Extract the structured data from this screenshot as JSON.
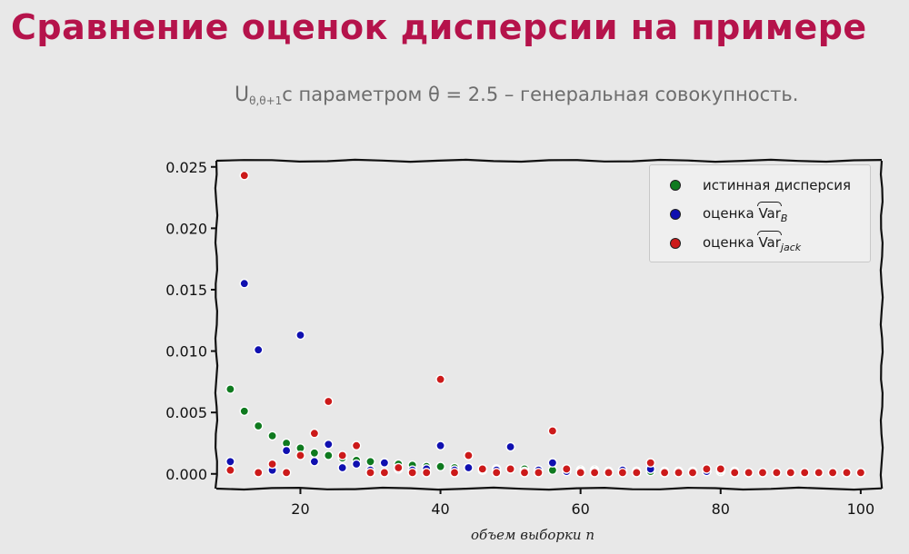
{
  "slide": {
    "title": "Сравнение оценок дисперсии на примере",
    "subtitle_symbol": "U",
    "subtitle_subscript": "θ,θ+1",
    "subtitle_text": "с параметром θ = 2.5 – генеральная совокупность."
  },
  "chart_data": {
    "type": "scatter",
    "xlabel": "объем выборки n",
    "ylabel": "",
    "xlim": [
      8,
      103
    ],
    "ylim": [
      -0.0012,
      0.0255
    ],
    "xticks": [
      20,
      40,
      60,
      80,
      100
    ],
    "yticks": [
      0.0,
      0.005,
      0.01,
      0.015,
      0.02,
      0.025
    ],
    "ytick_labels": [
      "0.000",
      "0.005",
      "0.010",
      "0.015",
      "0.020",
      "0.025"
    ],
    "grid": false,
    "legend_position": "top-right",
    "series": [
      {
        "name": "истинная дисперсия",
        "label_base": "истинная дисперсия",
        "label_hat": "",
        "label_sub": "",
        "color": "#0f7a1f",
        "x": [
          10,
          12,
          14,
          16,
          18,
          20,
          22,
          24,
          26,
          28,
          30,
          32,
          34,
          36,
          38,
          40,
          42,
          44,
          46,
          48,
          50,
          52,
          54,
          56,
          58,
          60,
          62,
          64,
          66,
          68,
          70,
          72,
          74,
          76,
          78,
          80,
          82,
          84,
          86,
          88,
          90,
          92,
          94,
          96,
          98,
          100
        ],
        "y": [
          0.0069,
          0.0051,
          0.0039,
          0.0031,
          0.0025,
          0.0021,
          0.0017,
          0.0015,
          0.0013,
          0.0011,
          0.001,
          0.0009,
          0.0008,
          0.0007,
          0.0006,
          0.0006,
          0.0005,
          0.0005,
          0.0004,
          0.0004,
          0.0004,
          0.0004,
          0.0003,
          0.0003,
          0.0003,
          0.0003,
          0.0003,
          0.0002,
          0.0002,
          0.0002,
          0.0002,
          0.0002,
          0.0002,
          0.0002,
          0.0002,
          0.0002,
          0.0002,
          0.0001,
          0.0001,
          0.0001,
          0.0001,
          0.0001,
          0.0001,
          0.0001,
          0.0001,
          0.0001
        ]
      },
      {
        "name": "оценка Var_B",
        "label_base": "оценка ",
        "label_hat": "Var",
        "label_sub": "B",
        "color": "#1010b0",
        "x": [
          10,
          12,
          14,
          16,
          18,
          20,
          22,
          24,
          26,
          28,
          30,
          32,
          34,
          36,
          38,
          40,
          42,
          44,
          46,
          48,
          50,
          52,
          54,
          56,
          58,
          60,
          62,
          64,
          66,
          68,
          70,
          72,
          74,
          76,
          78,
          80,
          82,
          84,
          86,
          88,
          90,
          92,
          94,
          96,
          98,
          100
        ],
        "y": [
          0.001,
          0.0155,
          0.0101,
          0.0003,
          0.0019,
          0.0113,
          0.001,
          0.0024,
          0.0005,
          0.0008,
          0.0003,
          0.0009,
          0.0004,
          0.0003,
          0.0004,
          0.0023,
          0.0003,
          0.0005,
          0.0003,
          0.0003,
          0.0022,
          0.0002,
          0.0003,
          0.0009,
          0.0002,
          0.0002,
          0.0002,
          0.0002,
          0.0003,
          0.0002,
          0.0004,
          0.0001,
          0.0002,
          0.0001,
          0.0002,
          0.0003,
          0.0001,
          0.0001,
          0.0001,
          0.0001,
          0.0001,
          0.0001,
          0.0001,
          0.0001,
          0.0001,
          0.0001
        ]
      },
      {
        "name": "оценка Var_jack",
        "label_base": "оценка ",
        "label_hat": "Var",
        "label_sub": "jack",
        "color": "#cc1a1a",
        "x": [
          10,
          12,
          14,
          16,
          18,
          20,
          22,
          24,
          26,
          28,
          30,
          32,
          34,
          36,
          38,
          40,
          42,
          44,
          46,
          48,
          50,
          52,
          54,
          56,
          58,
          60,
          62,
          64,
          66,
          68,
          70,
          72,
          74,
          76,
          78,
          80,
          82,
          84,
          86,
          88,
          90,
          92,
          94,
          96,
          98,
          100
        ],
        "y": [
          0.0003,
          0.0243,
          0.0001,
          0.0008,
          0.0001,
          0.0015,
          0.0033,
          0.0059,
          0.0015,
          0.0023,
          0.0001,
          0.0001,
          0.0005,
          0.0001,
          0.0001,
          0.0077,
          0.0001,
          0.0015,
          0.0004,
          0.0001,
          0.0004,
          0.0001,
          0.0001,
          0.0035,
          0.0004,
          0.0001,
          0.0001,
          0.0001,
          0.0001,
          0.0001,
          0.0009,
          0.0001,
          0.0001,
          0.0001,
          0.0004,
          0.0004,
          0.0001,
          0.0001,
          0.0001,
          0.0001,
          0.0001,
          0.0001,
          0.0001,
          0.0001,
          0.0001,
          0.0001
        ]
      }
    ]
  }
}
